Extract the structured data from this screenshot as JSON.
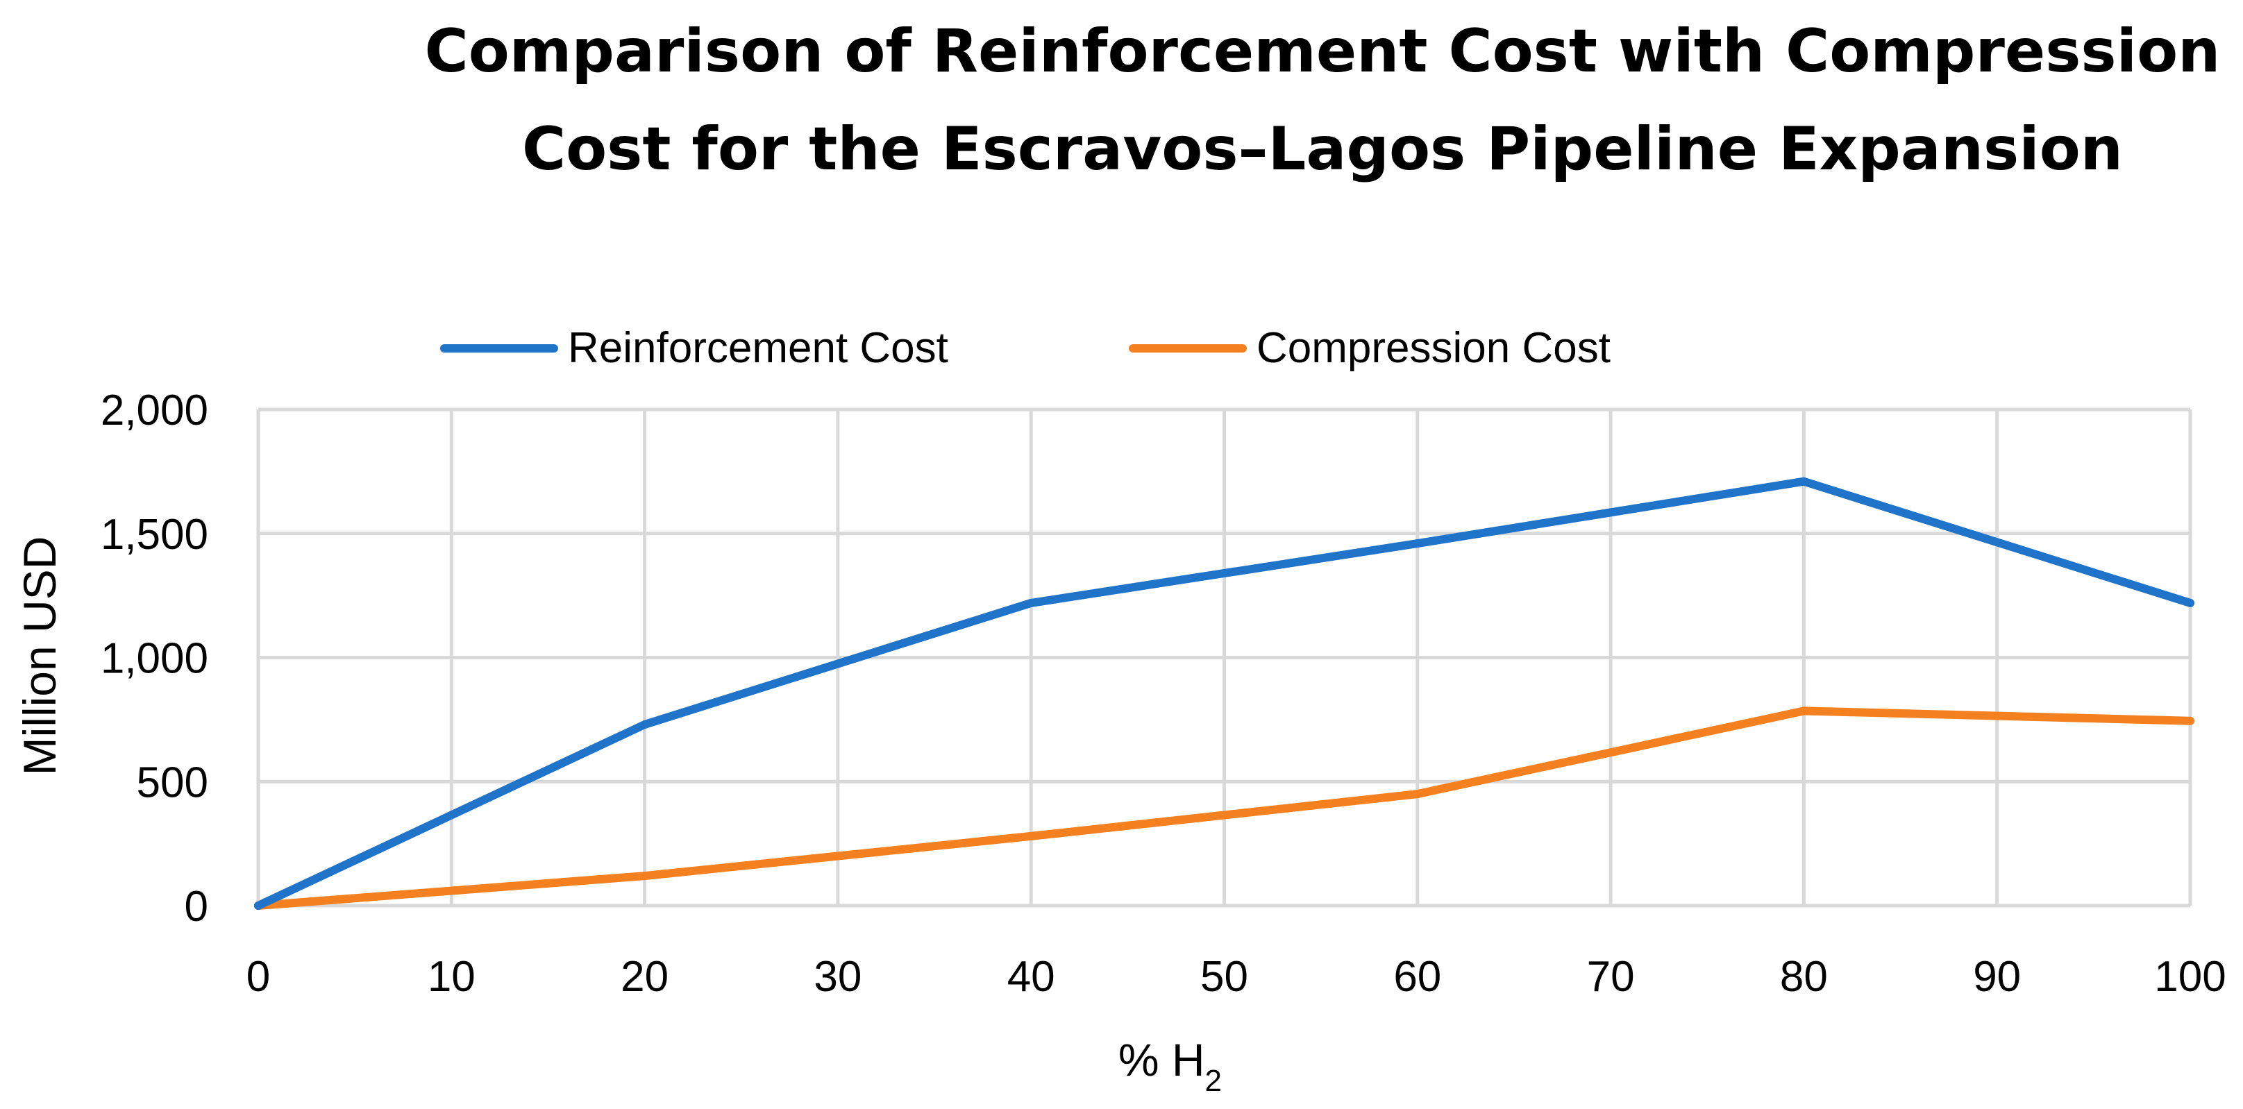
{
  "chart_data": {
    "type": "line",
    "title_lines": [
      "Comparison of Reinforcement Cost with Compression",
      "Cost for the Escravos–Lagos Pipeline Expansion"
    ],
    "xlabel": "% H",
    "xlabel_subscript": "2",
    "ylabel": "Million USD",
    "x_ticks": [
      0,
      10,
      20,
      30,
      40,
      50,
      60,
      70,
      80,
      90,
      100
    ],
    "y_ticks": [
      0,
      500,
      1000,
      1500,
      2000
    ],
    "y_tick_labels": [
      "0",
      "500",
      "1,000",
      "1,500",
      "2,000"
    ],
    "xlim": [
      0,
      100
    ],
    "ylim": [
      0,
      2000
    ],
    "grid": true,
    "legend_position": "top",
    "series": [
      {
        "name": "Reinforcement Cost",
        "color": "#1f73c8",
        "x": [
          0,
          20,
          40,
          60,
          80,
          100
        ],
        "values": [
          0,
          730,
          1220,
          1460,
          1710,
          1220
        ]
      },
      {
        "name": "Compression Cost",
        "color": "#f58020",
        "x": [
          0,
          20,
          40,
          60,
          80,
          100
        ],
        "values": [
          0,
          120,
          280,
          450,
          785,
          745
        ]
      }
    ]
  }
}
